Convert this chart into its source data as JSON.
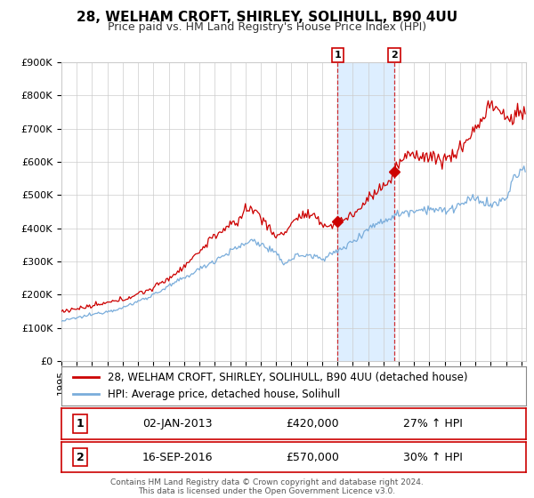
{
  "title": "28, WELHAM CROFT, SHIRLEY, SOLIHULL, B90 4UU",
  "subtitle": "Price paid vs. HM Land Registry's House Price Index (HPI)",
  "red_label": "28, WELHAM CROFT, SHIRLEY, SOLIHULL, B90 4UU (detached house)",
  "blue_label": "HPI: Average price, detached house, Solihull",
  "ylim": [
    0,
    900000
  ],
  "yticks": [
    0,
    100000,
    200000,
    300000,
    400000,
    500000,
    600000,
    700000,
    800000,
    900000
  ],
  "ytick_labels": [
    "£0",
    "£100K",
    "£200K",
    "£300K",
    "£400K",
    "£500K",
    "£600K",
    "£700K",
    "£800K",
    "£900K"
  ],
  "xmin": 1995.0,
  "xmax": 2025.3,
  "sale1_date": 2013.02,
  "sale1_price": 420000,
  "sale1_label": "02-JAN-2013",
  "sale1_pct": "27% ↑ HPI",
  "sale2_date": 2016.71,
  "sale2_price": 570000,
  "sale2_label": "16-SEP-2016",
  "sale2_pct": "30% ↑ HPI",
  "shade_start": 2013.02,
  "shade_end": 2016.71,
  "red_color": "#cc0000",
  "blue_color": "#7aaddb",
  "shade_color": "#ddeeff",
  "dashed_line_color": "#cc0000",
  "grid_color": "#cccccc",
  "background_color": "#ffffff",
  "footer_text": "Contains HM Land Registry data © Crown copyright and database right 2024.\nThis data is licensed under the Open Government Licence v3.0.",
  "title_fontsize": 11,
  "subtitle_fontsize": 9,
  "axis_fontsize": 8,
  "legend_fontsize": 8.5
}
